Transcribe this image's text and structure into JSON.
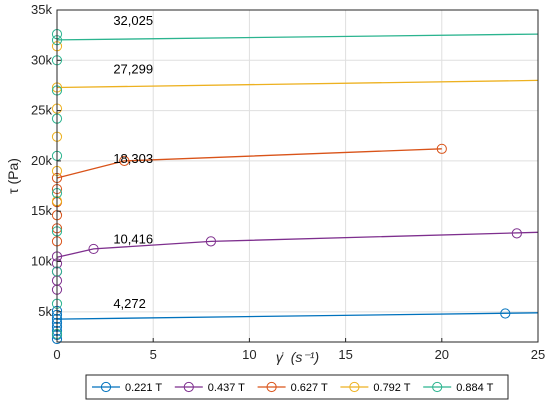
{
  "chart_data": {
    "type": "line",
    "xlabel_prefix": "γ̇",
    "xlabel_unit": "(s⁻¹)",
    "ylabel": "τ (Pa)",
    "xlim": [
      0,
      25
    ],
    "ylim": [
      2000,
      35000
    ],
    "grid": true,
    "legend_position": "bottom-outside",
    "x_ticks": [
      0,
      5,
      10,
      15,
      20,
      25
    ],
    "x_tick_labels": [
      "0",
      "5",
      "10",
      "15",
      "20",
      "25"
    ],
    "y_ticks": [
      5000,
      10000,
      15000,
      20000,
      25000,
      30000,
      35000
    ],
    "y_tick_labels": [
      "5k",
      "10k",
      "15k",
      "20k",
      "25k",
      "30k",
      "35k"
    ],
    "series": [
      {
        "name": "0.221 T",
        "color": "#0072BD",
        "points": [
          [
            0,
            2300
          ],
          [
            0,
            2700
          ],
          [
            0,
            3100
          ],
          [
            0,
            3500
          ],
          [
            0,
            3900
          ],
          [
            0,
            4300
          ],
          [
            0,
            4700
          ],
          [
            0,
            5100
          ],
          [
            23.3,
            4830
          ]
        ],
        "fit": [
          [
            0,
            4272
          ],
          [
            25,
            4900
          ]
        ],
        "annotation": {
          "text": "4,272",
          "x": 2.2,
          "y": 5400
        }
      },
      {
        "name": "0.437 T",
        "color": "#7E2F8E",
        "points": [
          [
            0,
            7200
          ],
          [
            0,
            8100
          ],
          [
            0,
            9000
          ],
          [
            0,
            9800
          ],
          [
            0,
            10500
          ],
          [
            1.9,
            11250
          ],
          [
            8.0,
            12000
          ],
          [
            23.9,
            12800
          ]
        ],
        "fit": [
          [
            0,
            10416
          ],
          [
            1.9,
            11250
          ],
          [
            8.0,
            12000
          ],
          [
            25,
            12900
          ]
        ],
        "annotation": {
          "text": "10,416",
          "x": 2.2,
          "y": 11800
        }
      },
      {
        "name": "0.627 T",
        "color": "#D95319",
        "points": [
          [
            0,
            12000
          ],
          [
            0,
            13300
          ],
          [
            0,
            14600
          ],
          [
            0,
            15900
          ],
          [
            0,
            17200
          ],
          [
            0,
            18300
          ],
          [
            3.5,
            20000
          ],
          [
            20.0,
            21200
          ]
        ],
        "fit": [
          [
            0,
            18303
          ],
          [
            3.5,
            20000
          ],
          [
            20.0,
            21200
          ]
        ],
        "annotation": {
          "text": "18,303",
          "x": 2.2,
          "y": 19800
        }
      },
      {
        "name": "0.792 T",
        "color": "#EDB120",
        "points": [
          [
            0,
            16000
          ],
          [
            0,
            19000
          ],
          [
            0,
            22400
          ],
          [
            0,
            25200
          ],
          [
            0,
            27300
          ],
          [
            0,
            31400
          ]
        ],
        "fit": [
          [
            0,
            27299
          ],
          [
            25,
            28000
          ]
        ],
        "annotation": {
          "text": "27,299",
          "x": 2.2,
          "y": 28700
        }
      },
      {
        "name": "0.884 T",
        "color": "#2BB48F",
        "points": [
          [
            0,
            2800
          ],
          [
            0,
            5800
          ],
          [
            0,
            9000
          ],
          [
            0,
            13000
          ],
          [
            0,
            16800
          ],
          [
            0,
            20500
          ],
          [
            0,
            24200
          ],
          [
            0,
            27000
          ],
          [
            0,
            30000
          ],
          [
            0,
            32000
          ],
          [
            0,
            32600
          ]
        ],
        "fit": [
          [
            0,
            32025
          ],
          [
            25,
            32600
          ]
        ],
        "annotation": {
          "text": "32,025",
          "x": 2.2,
          "y": 33500
        }
      }
    ]
  }
}
